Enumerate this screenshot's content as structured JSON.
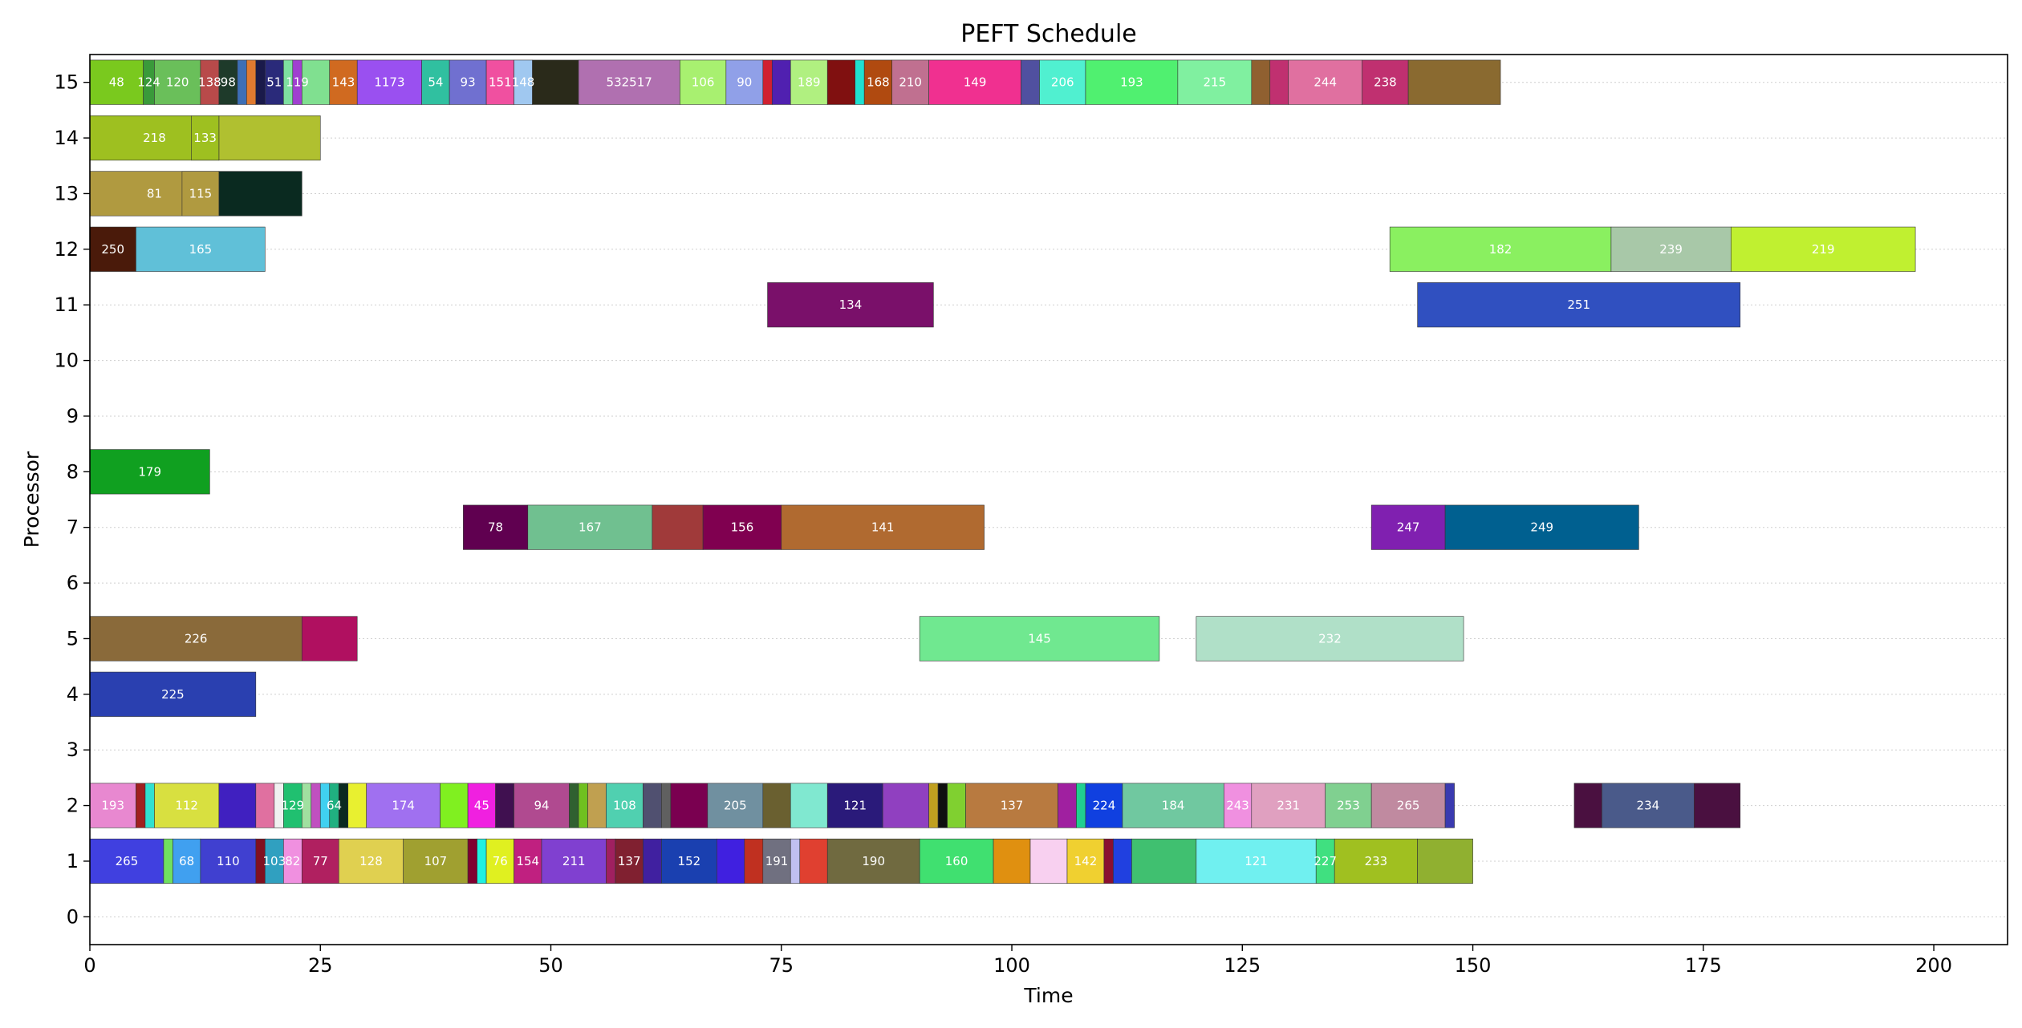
{
  "chart_data": {
    "type": "gantt",
    "title": "PEFT Schedule",
    "xlabel": "Time",
    "ylabel": "Processor",
    "xlim": [
      0,
      208
    ],
    "ylim": [
      -0.5,
      15.5
    ],
    "x_ticks": [
      0,
      25,
      50,
      75,
      100,
      125,
      150,
      175,
      200
    ],
    "y_ticks": [
      0,
      1,
      2,
      3,
      4,
      5,
      6,
      7,
      8,
      9,
      10,
      11,
      12,
      13,
      14,
      15
    ],
    "grid": "horizontal dotted",
    "legend": "none",
    "tasks": [
      {
        "proc": 15,
        "start": 0.0,
        "end": 5.8,
        "label": "48",
        "color": "#7ac91e"
      },
      {
        "proc": 15,
        "start": 5.8,
        "end": 7.0,
        "label": "124",
        "color": "#3a9a3a"
      },
      {
        "proc": 15,
        "start": 7.0,
        "end": 12.0,
        "label": "120",
        "color": "#6abf5a"
      },
      {
        "proc": 15,
        "start": 12.0,
        "end": 14.0,
        "label": "138",
        "color": "#b84a4a"
      },
      {
        "proc": 15,
        "start": 14.0,
        "end": 16.0,
        "label": "98",
        "color": "#1e3a2a"
      },
      {
        "proc": 15,
        "start": 16.0,
        "end": 17.0,
        "label": "",
        "color": "#3d6fb6"
      },
      {
        "proc": 15,
        "start": 17.0,
        "end": 18.0,
        "label": "",
        "color": "#e07a30"
      },
      {
        "proc": 15,
        "start": 18.0,
        "end": 19.0,
        "label": "",
        "color": "#1a1a4a"
      },
      {
        "proc": 15,
        "start": 19.0,
        "end": 21.0,
        "label": "51",
        "color": "#2a2a7a"
      },
      {
        "proc": 15,
        "start": 21.0,
        "end": 22.0,
        "label": "",
        "color": "#7ee0a0"
      },
      {
        "proc": 15,
        "start": 22.0,
        "end": 23.0,
        "label": "119",
        "color": "#a040d0"
      },
      {
        "proc": 15,
        "start": 23.0,
        "end": 26.0,
        "label": "",
        "color": "#80e090"
      },
      {
        "proc": 15,
        "start": 26.0,
        "end": 29.0,
        "label": "143",
        "color": "#d06a20"
      },
      {
        "proc": 15,
        "start": 29.0,
        "end": 36.0,
        "label": "1173",
        "color": "#9a50f0"
      },
      {
        "proc": 15,
        "start": 36.0,
        "end": 39.0,
        "label": "54",
        "color": "#30c0a0"
      },
      {
        "proc": 15,
        "start": 39.0,
        "end": 43.0,
        "label": "93",
        "color": "#7070d0"
      },
      {
        "proc": 15,
        "start": 43.0,
        "end": 46.0,
        "label": "151",
        "color": "#f050a0"
      },
      {
        "proc": 15,
        "start": 46.0,
        "end": 48.0,
        "label": "148",
        "color": "#a0c8f0"
      },
      {
        "proc": 15,
        "start": 48.0,
        "end": 53.0,
        "label": "",
        "color": "#2a2a1a"
      },
      {
        "proc": 15,
        "start": 53.0,
        "end": 64.0,
        "label": "532517",
        "color": "#b070b0"
      },
      {
        "proc": 15,
        "start": 64.0,
        "end": 69.0,
        "label": "106",
        "color": "#a8f070"
      },
      {
        "proc": 15,
        "start": 69.0,
        "end": 73.0,
        "label": "90",
        "color": "#90a0e8"
      },
      {
        "proc": 15,
        "start": 73.0,
        "end": 74.0,
        "label": "",
        "color": "#d02030"
      },
      {
        "proc": 15,
        "start": 74.0,
        "end": 76.0,
        "label": "",
        "color": "#5020b0"
      },
      {
        "proc": 15,
        "start": 76.0,
        "end": 80.0,
        "label": "189",
        "color": "#b0f080"
      },
      {
        "proc": 15,
        "start": 80.0,
        "end": 83.0,
        "label": "",
        "color": "#801010"
      },
      {
        "proc": 15,
        "start": 83.0,
        "end": 84.0,
        "label": "",
        "color": "#20e0d0"
      },
      {
        "proc": 15,
        "start": 84.0,
        "end": 87.0,
        "label": "168",
        "color": "#b04a10"
      },
      {
        "proc": 15,
        "start": 87.0,
        "end": 91.0,
        "label": "210",
        "color": "#c07090"
      },
      {
        "proc": 15,
        "start": 91.0,
        "end": 101.0,
        "label": "149",
        "color": "#f03090"
      },
      {
        "proc": 15,
        "start": 101.0,
        "end": 103.0,
        "label": "",
        "color": "#5050a0"
      },
      {
        "proc": 15,
        "start": 103.0,
        "end": 108.0,
        "label": "206",
        "color": "#50f0d0"
      },
      {
        "proc": 15,
        "start": 108.0,
        "end": 118.0,
        "label": "193",
        "color": "#50f070"
      },
      {
        "proc": 15,
        "start": 118.0,
        "end": 126.0,
        "label": "215",
        "color": "#80f0a0"
      },
      {
        "proc": 15,
        "start": 126.0,
        "end": 128.0,
        "label": "",
        "color": "#906030"
      },
      {
        "proc": 15,
        "start": 128.0,
        "end": 130.0,
        "label": "",
        "color": "#c03070"
      },
      {
        "proc": 15,
        "start": 130.0,
        "end": 138.0,
        "label": "244",
        "color": "#e070a0"
      },
      {
        "proc": 15,
        "start": 138.0,
        "end": 143.0,
        "label": "238",
        "color": "#c03070"
      },
      {
        "proc": 15,
        "start": 143.0,
        "end": 153.0,
        "label": "",
        "color": "#8a6a30"
      },
      {
        "proc": 14,
        "start": 0.0,
        "end": 14.0,
        "label": "218",
        "color": "#9ec020"
      },
      {
        "proc": 14,
        "start": 14.0,
        "end": 25.0,
        "label": "",
        "color": "#b0c030"
      },
      {
        "proc": 14,
        "start": 11.0,
        "end": 14.0,
        "label": "133",
        "color": "#9ec020"
      },
      {
        "proc": 13,
        "start": 0.0,
        "end": 14.0,
        "label": "81",
        "color": "#b09a40"
      },
      {
        "proc": 13,
        "start": 14.0,
        "end": 23.0,
        "label": "",
        "color": "#0a2a20"
      },
      {
        "proc": 13,
        "start": 10.0,
        "end": 14.0,
        "label": "115",
        "color": "#b09a40"
      },
      {
        "proc": 12,
        "start": 0.0,
        "end": 5.0,
        "label": "250",
        "color": "#4a1a0a"
      },
      {
        "proc": 12,
        "start": 5.0,
        "end": 19.0,
        "label": "165",
        "color": "#60c0d8"
      },
      {
        "proc": 12,
        "start": 141.0,
        "end": 165.0,
        "label": "182",
        "color": "#8af060"
      },
      {
        "proc": 12,
        "start": 165.0,
        "end": 178.0,
        "label": "239",
        "color": "#a8c8a8"
      },
      {
        "proc": 12,
        "start": 178.0,
        "end": 198.0,
        "label": "219",
        "color": "#c0f030"
      },
      {
        "proc": 11,
        "start": 73.5,
        "end": 91.5,
        "label": "134",
        "color": "#7a106a"
      },
      {
        "proc": 11,
        "start": 144.0,
        "end": 179.0,
        "label": "251",
        "color": "#3050c0"
      },
      {
        "proc": 8,
        "start": 0.0,
        "end": 13.0,
        "label": "179",
        "color": "#10a020"
      },
      {
        "proc": 7,
        "start": 40.5,
        "end": 47.5,
        "label": "78",
        "color": "#600050"
      },
      {
        "proc": 7,
        "start": 47.5,
        "end": 61.0,
        "label": "167",
        "color": "#70c090"
      },
      {
        "proc": 7,
        "start": 61.0,
        "end": 66.5,
        "label": "",
        "color": "#a03a3a"
      },
      {
        "proc": 7,
        "start": 66.5,
        "end": 75.0,
        "label": "156",
        "color": "#800050"
      },
      {
        "proc": 7,
        "start": 75.0,
        "end": 97.0,
        "label": "141",
        "color": "#b06a30"
      },
      {
        "proc": 7,
        "start": 139.0,
        "end": 147.0,
        "label": "247",
        "color": "#8020b0"
      },
      {
        "proc": 7,
        "start": 147.0,
        "end": 168.0,
        "label": "249",
        "color": "#006090"
      },
      {
        "proc": 5,
        "start": 0.0,
        "end": 23.0,
        "label": "226",
        "color": "#8a6a3a"
      },
      {
        "proc": 5,
        "start": 23.0,
        "end": 29.0,
        "label": "",
        "color": "#b01060"
      },
      {
        "proc": 5,
        "start": 90.0,
        "end": 116.0,
        "label": "145",
        "color": "#70e890"
      },
      {
        "proc": 5,
        "start": 120.0,
        "end": 149.0,
        "label": "232",
        "color": "#b0e0c8"
      },
      {
        "proc": 4,
        "start": 0.0,
        "end": 18.0,
        "label": "225",
        "color": "#2a40b0"
      },
      {
        "proc": 2,
        "start": 0.0,
        "end": 5.0,
        "label": "193",
        "color": "#e888d0"
      },
      {
        "proc": 2,
        "start": 5.0,
        "end": 6.0,
        "label": "",
        "color": "#a02020"
      },
      {
        "proc": 2,
        "start": 6.0,
        "end": 7.0,
        "label": "",
        "color": "#30e0d0"
      },
      {
        "proc": 2,
        "start": 7.0,
        "end": 14.0,
        "label": "112",
        "color": "#d8e040"
      },
      {
        "proc": 2,
        "start": 14.0,
        "end": 18.0,
        "label": "",
        "color": "#4020c0"
      },
      {
        "proc": 2,
        "start": 18.0,
        "end": 20.0,
        "label": "",
        "color": "#e070a0"
      },
      {
        "proc": 2,
        "start": 20.0,
        "end": 21.0,
        "label": "",
        "color": "#f0f0f0"
      },
      {
        "proc": 2,
        "start": 21.0,
        "end": 23.0,
        "label": "129",
        "color": "#20c070"
      },
      {
        "proc": 2,
        "start": 23.0,
        "end": 24.0,
        "label": "",
        "color": "#a0e0a0"
      },
      {
        "proc": 2,
        "start": 24.0,
        "end": 25.0,
        "label": "",
        "color": "#c050c0"
      },
      {
        "proc": 2,
        "start": 25.0,
        "end": 26.0,
        "label": "",
        "color": "#40d0f0"
      },
      {
        "proc": 2,
        "start": 26.0,
        "end": 27.0,
        "label": "64",
        "color": "#20b080"
      },
      {
        "proc": 2,
        "start": 27.0,
        "end": 28.0,
        "label": "",
        "color": "#0a2a20"
      },
      {
        "proc": 2,
        "start": 28.0,
        "end": 30.0,
        "label": "",
        "color": "#e8f030"
      },
      {
        "proc": 2,
        "start": 30.0,
        "end": 38.0,
        "label": "174",
        "color": "#a070f0"
      },
      {
        "proc": 2,
        "start": 38.0,
        "end": 41.0,
        "label": "",
        "color": "#80f020"
      },
      {
        "proc": 2,
        "start": 41.0,
        "end": 44.0,
        "label": "45",
        "color": "#f020e0"
      },
      {
        "proc": 2,
        "start": 44.0,
        "end": 46.0,
        "label": "",
        "color": "#401050"
      },
      {
        "proc": 2,
        "start": 46.0,
        "end": 52.0,
        "label": "94",
        "color": "#b04a90"
      },
      {
        "proc": 2,
        "start": 52.0,
        "end": 53.0,
        "label": "",
        "color": "#306030"
      },
      {
        "proc": 2,
        "start": 53.0,
        "end": 54.0,
        "label": "",
        "color": "#70c020"
      },
      {
        "proc": 2,
        "start": 54.0,
        "end": 56.0,
        "label": "",
        "color": "#c0a050"
      },
      {
        "proc": 2,
        "start": 56.0,
        "end": 60.0,
        "label": "108",
        "color": "#50d0b0"
      },
      {
        "proc": 2,
        "start": 60.0,
        "end": 62.0,
        "label": "",
        "color": "#505070"
      },
      {
        "proc": 2,
        "start": 62.0,
        "end": 63.0,
        "label": "",
        "color": "#606060"
      },
      {
        "proc": 2,
        "start": 63.0,
        "end": 67.0,
        "label": "",
        "color": "#7a0050"
      },
      {
        "proc": 2,
        "start": 67.0,
        "end": 73.0,
        "label": "205",
        "color": "#7090a0"
      },
      {
        "proc": 2,
        "start": 73.0,
        "end": 76.0,
        "label": "",
        "color": "#6a6030"
      },
      {
        "proc": 2,
        "start": 76.0,
        "end": 80.0,
        "label": "",
        "color": "#80e8d0"
      },
      {
        "proc": 2,
        "start": 80.0,
        "end": 86.0,
        "label": "121",
        "color": "#2a1a7a"
      },
      {
        "proc": 2,
        "start": 86.0,
        "end": 91.0,
        "label": "",
        "color": "#9040c0"
      },
      {
        "proc": 2,
        "start": 91.0,
        "end": 92.0,
        "label": "",
        "color": "#c0a020"
      },
      {
        "proc": 2,
        "start": 92.0,
        "end": 93.0,
        "label": "",
        "color": "#101010"
      },
      {
        "proc": 2,
        "start": 93.0,
        "end": 95.0,
        "label": "",
        "color": "#80d030"
      },
      {
        "proc": 2,
        "start": 95.0,
        "end": 105.0,
        "label": "137",
        "color": "#b87a40"
      },
      {
        "proc": 2,
        "start": 105.0,
        "end": 107.0,
        "label": "",
        "color": "#a020a0"
      },
      {
        "proc": 2,
        "start": 107.0,
        "end": 108.0,
        "label": "",
        "color": "#20d090"
      },
      {
        "proc": 2,
        "start": 108.0,
        "end": 112.0,
        "label": "224",
        "color": "#1040e0"
      },
      {
        "proc": 2,
        "start": 112.0,
        "end": 123.0,
        "label": "184",
        "color": "#70c8a0"
      },
      {
        "proc": 2,
        "start": 123.0,
        "end": 126.0,
        "label": "243",
        "color": "#f090e0"
      },
      {
        "proc": 2,
        "start": 126.0,
        "end": 134.0,
        "label": "231",
        "color": "#e0a0c0"
      },
      {
        "proc": 2,
        "start": 134.0,
        "end": 139.0,
        "label": "253",
        "color": "#80d090"
      },
      {
        "proc": 2,
        "start": 139.0,
        "end": 147.0,
        "label": "265",
        "color": "#c08aa0"
      },
      {
        "proc": 2,
        "start": 147.0,
        "end": 148.0,
        "label": "",
        "color": "#3a3ab0"
      },
      {
        "proc": 2,
        "start": 161.0,
        "end": 164.0,
        "label": "",
        "color": "#4a1040"
      },
      {
        "proc": 2,
        "start": 164.0,
        "end": 174.0,
        "label": "234",
        "color": "#4a5a8a"
      },
      {
        "proc": 2,
        "start": 174.0,
        "end": 179.0,
        "label": "",
        "color": "#4a1040"
      },
      {
        "proc": 1,
        "start": 0.0,
        "end": 8.0,
        "label": "265",
        "color": "#4040e0"
      },
      {
        "proc": 1,
        "start": 8.0,
        "end": 9.0,
        "label": "",
        "color": "#70e060"
      },
      {
        "proc": 1,
        "start": 9.0,
        "end": 12.0,
        "label": "68",
        "color": "#40a0f0"
      },
      {
        "proc": 1,
        "start": 12.0,
        "end": 18.0,
        "label": "110",
        "color": "#4040d0"
      },
      {
        "proc": 1,
        "start": 18.0,
        "end": 19.0,
        "label": "",
        "color": "#801020"
      },
      {
        "proc": 1,
        "start": 19.0,
        "end": 21.0,
        "label": "103",
        "color": "#30a0c0"
      },
      {
        "proc": 1,
        "start": 21.0,
        "end": 23.0,
        "label": "82",
        "color": "#f090e0"
      },
      {
        "proc": 1,
        "start": 23.0,
        "end": 27.0,
        "label": "77",
        "color": "#b02060"
      },
      {
        "proc": 1,
        "start": 27.0,
        "end": 34.0,
        "label": "128",
        "color": "#e0d050"
      },
      {
        "proc": 1,
        "start": 34.0,
        "end": 41.0,
        "label": "107",
        "color": "#a0a030"
      },
      {
        "proc": 1,
        "start": 41.0,
        "end": 42.0,
        "label": "",
        "color": "#800030"
      },
      {
        "proc": 1,
        "start": 42.0,
        "end": 43.0,
        "label": "",
        "color": "#20f0e0"
      },
      {
        "proc": 1,
        "start": 43.0,
        "end": 46.0,
        "label": "76",
        "color": "#e0f020"
      },
      {
        "proc": 1,
        "start": 46.0,
        "end": 49.0,
        "label": "154",
        "color": "#c02080"
      },
      {
        "proc": 1,
        "start": 49.0,
        "end": 56.0,
        "label": "211",
        "color": "#8040d0"
      },
      {
        "proc": 1,
        "start": 56.0,
        "end": 57.0,
        "label": "",
        "color": "#a02060"
      },
      {
        "proc": 1,
        "start": 57.0,
        "end": 60.0,
        "label": "137",
        "color": "#802030"
      },
      {
        "proc": 1,
        "start": 60.0,
        "end": 62.0,
        "label": "",
        "color": "#4020a0"
      },
      {
        "proc": 1,
        "start": 62.0,
        "end": 68.0,
        "label": "152",
        "color": "#1a40b0"
      },
      {
        "proc": 1,
        "start": 68.0,
        "end": 71.0,
        "label": "",
        "color": "#4020e0"
      },
      {
        "proc": 1,
        "start": 71.0,
        "end": 73.0,
        "label": "",
        "color": "#c03020"
      },
      {
        "proc": 1,
        "start": 73.0,
        "end": 76.0,
        "label": "191",
        "color": "#707080"
      },
      {
        "proc": 1,
        "start": 76.0,
        "end": 77.0,
        "label": "",
        "color": "#c0c0f0"
      },
      {
        "proc": 1,
        "start": 77.0,
        "end": 80.0,
        "label": "",
        "color": "#e04030"
      },
      {
        "proc": 1,
        "start": 80.0,
        "end": 90.0,
        "label": "190",
        "color": "#706a40"
      },
      {
        "proc": 1,
        "start": 90.0,
        "end": 98.0,
        "label": "160",
        "color": "#40e070"
      },
      {
        "proc": 1,
        "start": 98.0,
        "end": 102.0,
        "label": "",
        "color": "#e09010"
      },
      {
        "proc": 1,
        "start": 102.0,
        "end": 106.0,
        "label": "",
        "color": "#f8d0f0"
      },
      {
        "proc": 1,
        "start": 106.0,
        "end": 110.0,
        "label": "142",
        "color": "#f0d030"
      },
      {
        "proc": 1,
        "start": 110.0,
        "end": 111.0,
        "label": "",
        "color": "#8a1030"
      },
      {
        "proc": 1,
        "start": 111.0,
        "end": 113.0,
        "label": "",
        "color": "#2040e0"
      },
      {
        "proc": 1,
        "start": 113.0,
        "end": 120.0,
        "label": "",
        "color": "#40c070"
      },
      {
        "proc": 1,
        "start": 120.0,
        "end": 133.0,
        "label": "121",
        "color": "#70f0f0"
      },
      {
        "proc": 1,
        "start": 133.0,
        "end": 135.0,
        "label": "227",
        "color": "#40e080"
      },
      {
        "proc": 1,
        "start": 135.0,
        "end": 144.0,
        "label": "233",
        "color": "#a0c020"
      },
      {
        "proc": 1,
        "start": 144.0,
        "end": 150.0,
        "label": "",
        "color": "#90b030"
      }
    ]
  }
}
